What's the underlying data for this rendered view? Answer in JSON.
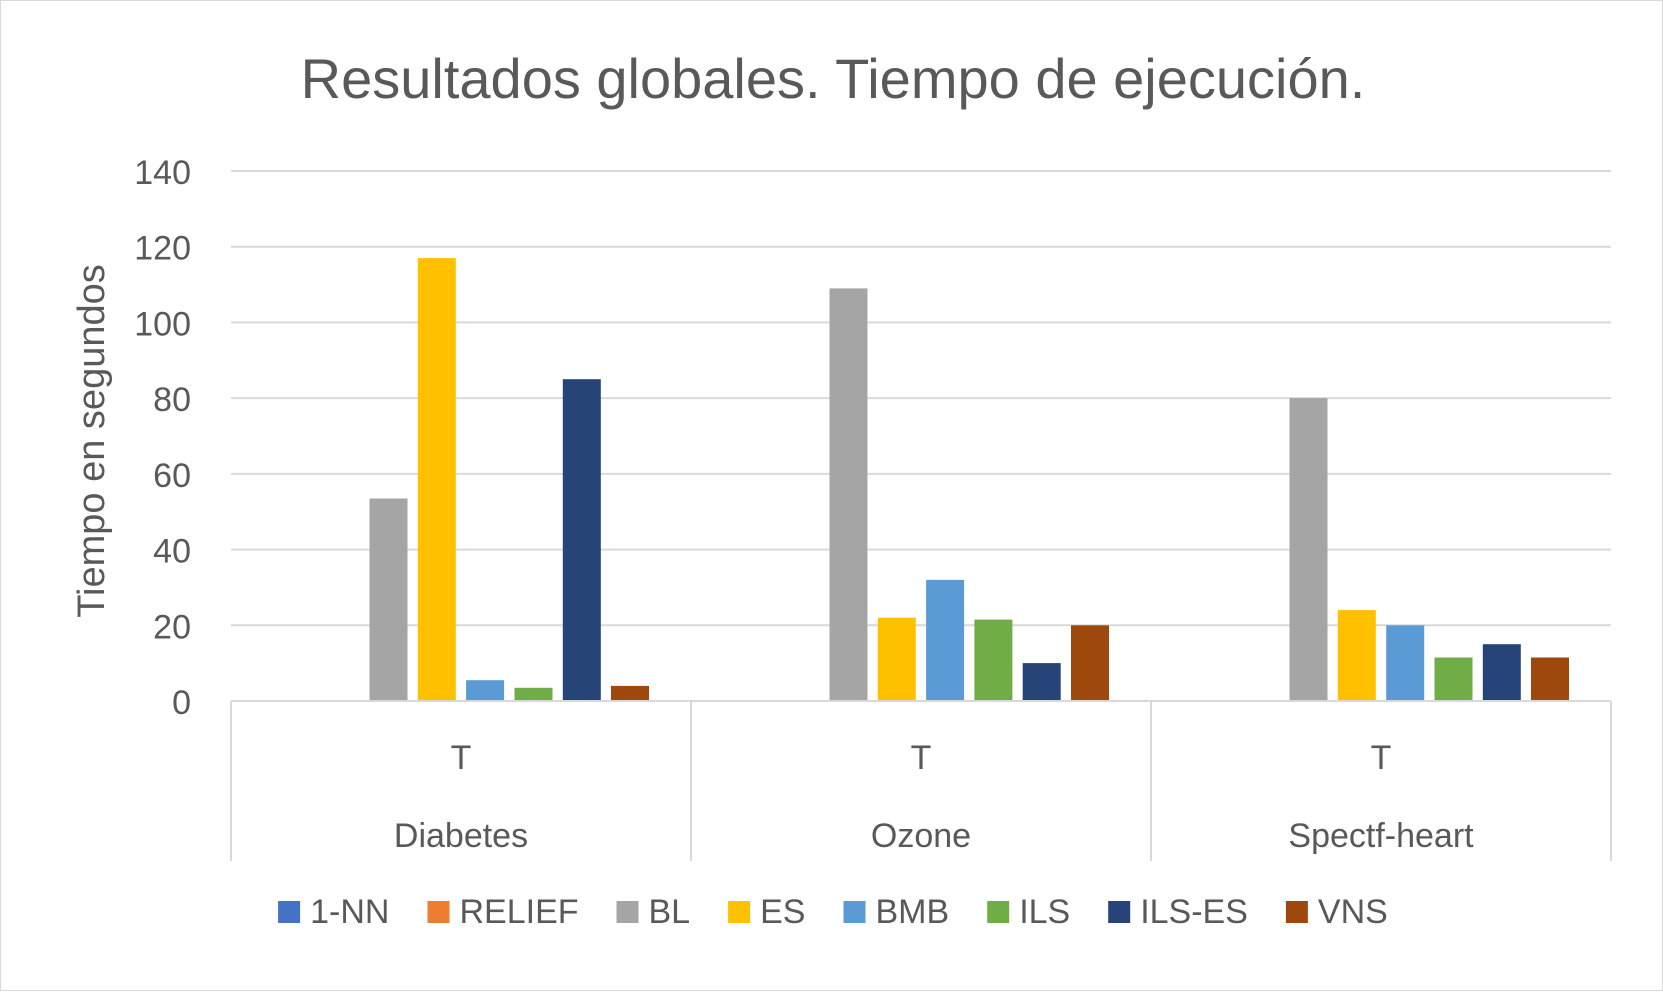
{
  "chart_data": {
    "type": "bar",
    "title": "Resultados globales. Tiempo de ejecución.",
    "xlabel": "",
    "ylabel": "Tiempo en segundos",
    "ylim": [
      0,
      140
    ],
    "yticks": [
      0,
      20,
      40,
      60,
      80,
      100,
      120,
      140
    ],
    "grid": true,
    "legend_position": "bottom",
    "categories": [
      {
        "group": "Diabetes",
        "sub": "T"
      },
      {
        "group": "Ozone",
        "sub": "T"
      },
      {
        "group": "Spectf-heart",
        "sub": "T"
      }
    ],
    "series": [
      {
        "name": "1-NN",
        "color": "#4472c4",
        "values": [
          0,
          0,
          0
        ]
      },
      {
        "name": "RELIEF",
        "color": "#ed7d31",
        "values": [
          0,
          0,
          0
        ]
      },
      {
        "name": "BL",
        "color": "#a5a5a5",
        "values": [
          53.5,
          109,
          80
        ]
      },
      {
        "name": "ES",
        "color": "#ffc000",
        "values": [
          117,
          22,
          24
        ]
      },
      {
        "name": "BMB",
        "color": "#5b9bd5",
        "values": [
          5.5,
          32,
          20
        ]
      },
      {
        "name": "ILS",
        "color": "#70ad47",
        "values": [
          3.5,
          21.5,
          11.5
        ]
      },
      {
        "name": "ILS-ES",
        "color": "#264478",
        "values": [
          85,
          10,
          15
        ]
      },
      {
        "name": "VNS",
        "color": "#9e480e",
        "values": [
          4,
          20,
          11.5
        ]
      }
    ]
  }
}
